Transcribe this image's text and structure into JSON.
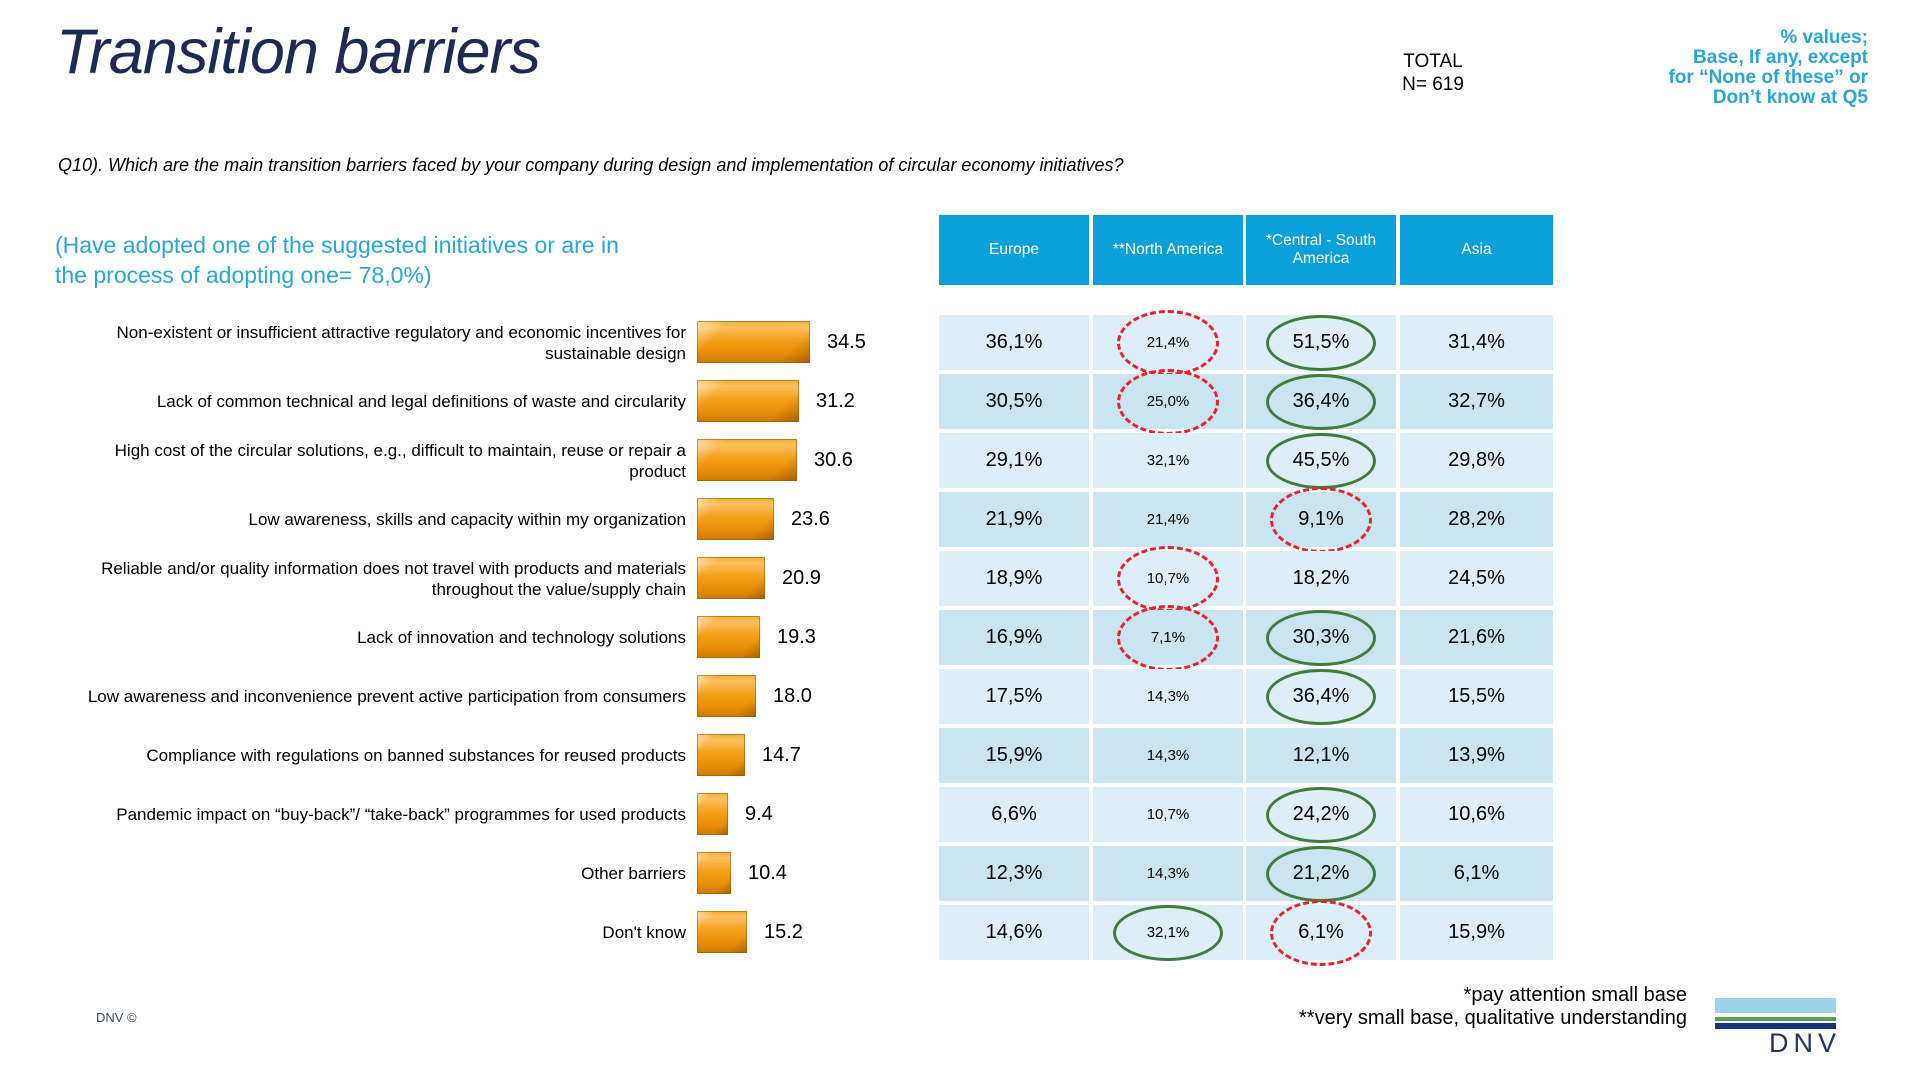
{
  "colors": {
    "title_navy": "#1B2B55",
    "accent_cyan": "#29A6DC",
    "header_bg": "#0CA0DA",
    "row_light": "#DEEEF8",
    "row_dark": "#CBE4F1",
    "bar_orange": "#F09C1E",
    "green_mark": "#3F7D3A",
    "red_mark": "#E8232B"
  },
  "slide": {
    "title": "Transition barriers",
    "total_label": "TOTAL",
    "total_n": "N= 619",
    "values_note_lines": [
      "% values;",
      "Base, If any, except",
      "for “None of these” or",
      "Don’t know at Q5"
    ],
    "question": "Q10). Which are the main transition barriers faced by your company during design and implementation of circular economy initiatives?",
    "adoption_note_lines": [
      "(Have adopted one of the suggested initiatives or are in",
      "the process of adopting one= 78,0%)"
    ],
    "footnote1": "*pay attention small base",
    "footnote2": "**very small base, qualitative understanding",
    "copyright": "DNV ©",
    "logo_text": "DNV"
  },
  "chart_data": {
    "type": "bar",
    "orientation": "horizontal",
    "title": "Transition barriers",
    "xlabel": "",
    "ylabel": "",
    "xlim": [
      0,
      40
    ],
    "grid": false,
    "categories": [
      "Non-existent or insufficient attractive regulatory and economic incentives for sustainable design",
      "Lack of common technical and legal definitions of waste and circularity",
      "High cost of the circular solutions, e.g., difficult to maintain, reuse or repair a product",
      "Low awareness, skills and capacity within my organization",
      "Reliable and/or quality information does not travel with products and materials throughout the value/supply chain",
      "Lack of innovation and technology solutions",
      "Low awareness and inconvenience prevent active participation from consumers",
      "Compliance with regulations on banned substances for reused products",
      "Pandemic impact on “buy-back”/ “take-back” programmes for used products",
      "Other barriers",
      "Don't know"
    ],
    "values": [
      34.5,
      31.2,
      30.6,
      23.6,
      20.9,
      19.3,
      18.0,
      14.7,
      9.4,
      10.4,
      15.2
    ],
    "value_labels": [
      "34.5",
      "31.2",
      "30.6",
      "23.6",
      "20.9",
      "19.3",
      "18.0",
      "14.7",
      "9.4",
      "10.4",
      "15.2"
    ],
    "region_table": {
      "columns": [
        "Europe",
        "**North America",
        "*Central - South America",
        "Asia"
      ],
      "rows": [
        {
          "values": [
            "36,1%",
            "21,4%",
            "51,5%",
            "31,4%"
          ],
          "marks": [
            "",
            "red",
            "green",
            ""
          ]
        },
        {
          "values": [
            "30,5%",
            "25,0%",
            "36,4%",
            "32,7%"
          ],
          "marks": [
            "",
            "red",
            "green",
            ""
          ]
        },
        {
          "values": [
            "29,1%",
            "32,1%",
            "45,5%",
            "29,8%"
          ],
          "marks": [
            "",
            "",
            "green",
            ""
          ]
        },
        {
          "values": [
            "21,9%",
            "21,4%",
            "9,1%",
            "28,2%"
          ],
          "marks": [
            "",
            "",
            "red",
            ""
          ]
        },
        {
          "values": [
            "18,9%",
            "10,7%",
            "18,2%",
            "24,5%"
          ],
          "marks": [
            "",
            "red",
            "",
            ""
          ]
        },
        {
          "values": [
            "16,9%",
            "7,1%",
            "30,3%",
            "21,6%"
          ],
          "marks": [
            "",
            "red",
            "green",
            ""
          ]
        },
        {
          "values": [
            "17,5%",
            "14,3%",
            "36,4%",
            "15,5%"
          ],
          "marks": [
            "",
            "",
            "green",
            ""
          ]
        },
        {
          "values": [
            "15,9%",
            "14,3%",
            "12,1%",
            "13,9%"
          ],
          "marks": [
            "",
            "",
            "",
            ""
          ]
        },
        {
          "values": [
            "6,6%",
            "10,7%",
            "24,2%",
            "10,6%"
          ],
          "marks": [
            "",
            "",
            "green",
            ""
          ]
        },
        {
          "values": [
            "12,3%",
            "14,3%",
            "21,2%",
            "6,1%"
          ],
          "marks": [
            "",
            "",
            "green",
            ""
          ]
        },
        {
          "values": [
            "14,6%",
            "32,1%",
            "6,1%",
            "15,9%"
          ],
          "marks": [
            "",
            "green",
            "red",
            ""
          ]
        }
      ],
      "legend": {
        "green_ellipse": "significantly higher",
        "red_dashed_ellipse": "significantly lower"
      }
    }
  }
}
